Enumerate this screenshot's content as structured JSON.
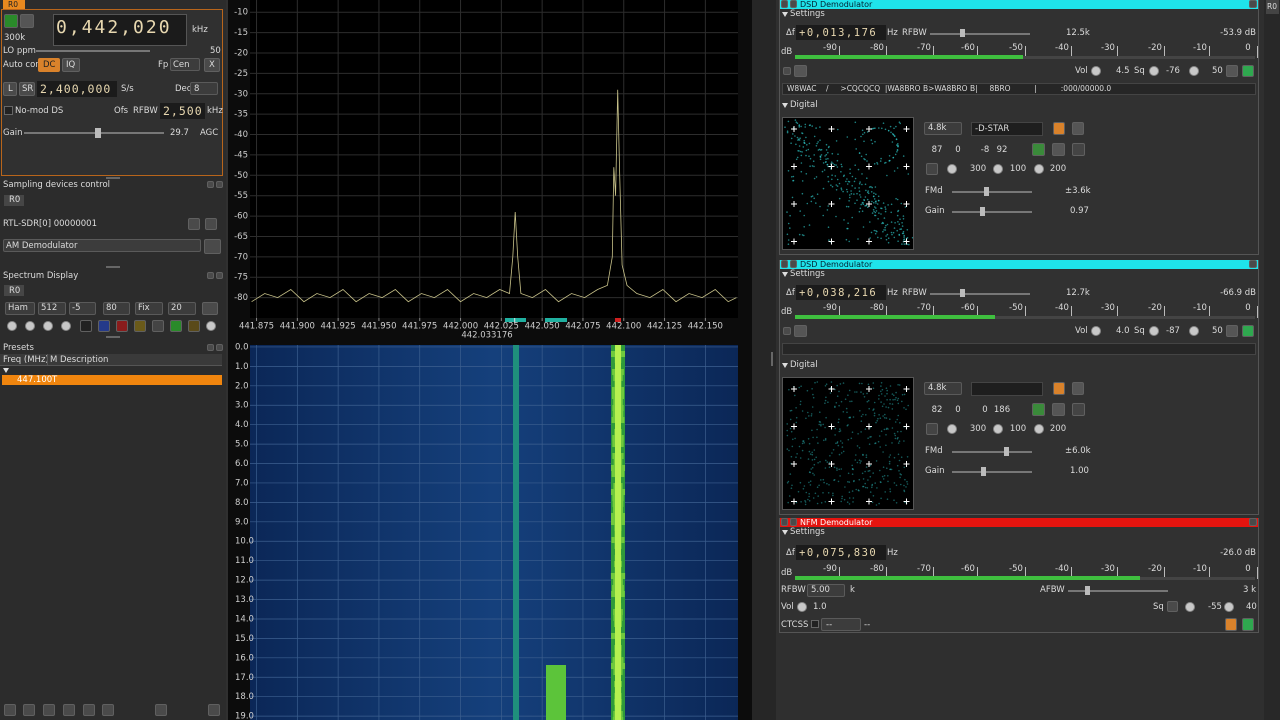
{
  "device": {
    "tab": "R0",
    "sample_rate": "300k",
    "frequency": "0,442,020",
    "frequency_unit": "kHz",
    "lo_ppm": "LO ppm",
    "lo_ppm_value": "50",
    "auto_corr": "Auto corr",
    "dc": "DC",
    "iq": "IQ",
    "fp": "Fp",
    "fp_value": "Cen",
    "close": "X",
    "l": "L",
    "sr": "SR",
    "sr_value": "2,400,000",
    "sr_unit": "S/s",
    "dec": "Dec",
    "dec_value": "8",
    "mode": "No-mod DS",
    "ofs": "Ofs",
    "rfbw": "RFBW",
    "rfbw_value": "2,500",
    "rfbw_unit": "kHz",
    "gain": "Gain",
    "gain_value": "29.7",
    "agc": "AGC"
  },
  "sampling": {
    "title": "Sampling devices control",
    "tab": "R0",
    "device": "RTL-SDR[0] 00000001",
    "plugin": "AM Demodulator"
  },
  "spectrum_display": {
    "title": "Spectrum Display",
    "tab": "R0",
    "window": "Ham",
    "fft": "512",
    "ref": "-5",
    "range": "80",
    "fix": "Fix",
    "avg": "20"
  },
  "presets": {
    "title": "Presets",
    "columns": [
      "Freq (MHz)",
      "M",
      "Description"
    ],
    "rows": [
      [
        "447.100",
        "T"
      ]
    ]
  },
  "spectrum": {
    "type": "line",
    "color": "#c9c38a",
    "grid": true,
    "x": [
      441.872,
      441.88,
      441.888,
      441.896,
      441.904,
      441.912,
      441.92,
      441.928,
      441.936,
      441.944,
      441.952,
      441.96,
      441.968,
      441.976,
      441.984,
      441.992,
      442.0,
      442.008,
      442.016,
      442.024,
      442.03,
      442.032,
      442.0335,
      442.035,
      442.037,
      442.044,
      442.052,
      442.06,
      442.068,
      442.076,
      442.084,
      442.09,
      442.093,
      442.0939,
      442.095,
      442.0963,
      442.0975,
      442.099,
      442.102,
      442.108,
      442.116,
      442.124,
      442.132,
      442.14,
      442.148,
      442.156,
      442.164,
      442.169
    ],
    "values": [
      -81,
      -79,
      -80,
      -78,
      -81,
      -79,
      -80,
      -78,
      -81,
      -79,
      -80,
      -78,
      -81,
      -79,
      -80,
      -78,
      -81,
      -79,
      -80,
      -78,
      -79,
      -70,
      -59,
      -70,
      -79,
      -80,
      -78,
      -81,
      -79,
      -80,
      -78,
      -77,
      -70,
      -48,
      -55,
      -29,
      -50,
      -72,
      -77,
      -79,
      -80,
      -78,
      -81,
      -79,
      -80,
      -78,
      -81,
      -80
    ],
    "xlim": [
      441.871,
      442.17
    ],
    "ylim": [
      -85,
      -7
    ],
    "xticks": [
      {
        "value": 441.875,
        "label": "441.875"
      },
      {
        "value": 441.9,
        "label": "441.900"
      },
      {
        "value": 441.925,
        "label": "441.925"
      },
      {
        "value": 441.95,
        "label": "441.950"
      },
      {
        "value": 441.975,
        "label": "441.975"
      },
      {
        "value": 442.0,
        "label": "442.000"
      },
      {
        "value": 442.025,
        "label": "442.025"
      },
      {
        "value": 442.05,
        "label": "442.050"
      },
      {
        "value": 442.075,
        "label": "442.075"
      },
      {
        "value": 442.1,
        "label": "442.100"
      },
      {
        "value": 442.125,
        "label": "442.125"
      },
      {
        "value": 442.15,
        "label": "442.150"
      }
    ],
    "yticks": [
      -10,
      -15,
      -20,
      -25,
      -30,
      -35,
      -40,
      -45,
      -50,
      -55,
      -60,
      -65,
      -70,
      -75,
      -80
    ],
    "marker": 442.033176
  },
  "waterfall": {
    "ylim": [
      -0.1,
      19.2
    ],
    "yticks": [
      {
        "value": 0,
        "label": "0.0"
      },
      {
        "value": 1,
        "label": "1.0"
      },
      {
        "value": 2,
        "label": "2.0"
      },
      {
        "value": 3,
        "label": "3.0"
      },
      {
        "value": 4,
        "label": "4.0"
      },
      {
        "value": 5,
        "label": "5.0"
      },
      {
        "value": 6,
        "label": "6.0"
      },
      {
        "value": 7,
        "label": "7.0"
      },
      {
        "value": 8,
        "label": "8.0"
      },
      {
        "value": 9,
        "label": "9.0"
      },
      {
        "value": 10,
        "label": "10.0"
      },
      {
        "value": 11,
        "label": "11.0"
      },
      {
        "value": 12,
        "label": "12.0"
      },
      {
        "value": 13,
        "label": "13.0"
      },
      {
        "value": 14,
        "label": "14.0"
      },
      {
        "value": 15,
        "label": "15.0"
      },
      {
        "value": 16,
        "label": "16.0"
      },
      {
        "value": 17,
        "label": "17.0"
      },
      {
        "value": 18,
        "label": "18.0"
      },
      {
        "value": 19,
        "label": "19.0"
      }
    ]
  },
  "meter_scale": [
    "-90",
    "-80",
    "-70",
    "-60",
    "-50",
    "-40",
    "-30",
    "-20",
    "-10",
    "0"
  ],
  "demodulators": [
    {
      "title": "DSD Demodulator",
      "settings": "Settings",
      "df": "Δf",
      "offset": "+0,013,176",
      "hz": "Hz",
      "rfbw": "RFBW",
      "rfbw_value": "12.5k",
      "level": "-53.9 dB",
      "db": "dB",
      "vol": "Vol",
      "vol_value": "4.5",
      "sq": "Sq",
      "sq_value": "-76",
      "sq_gate": "50",
      "status": "W8WAC    /     >CQCQCQ  |WA8BRO B>WA8BRO B|     8BRO          |          :000/00000.0",
      "digital": "Digital",
      "baud": "4.8k",
      "mode": "-D-STAR",
      "stats": [
        "87",
        "0",
        "-8",
        "92"
      ],
      "dials": [
        "300",
        "100",
        "200"
      ],
      "fmd": "FMd",
      "fmd_value": "±3.6k",
      "gain": "Gain",
      "gain_value": "0.97"
    },
    {
      "title": "DSD Demodulator",
      "settings": "Settings",
      "df": "Δf",
      "offset": "+0,038,216",
      "hz": "Hz",
      "rfbw": "RFBW",
      "rfbw_value": "12.7k",
      "level": "-66.9 dB",
      "db": "dB",
      "vol": "Vol",
      "vol_value": "4.0",
      "sq": "Sq",
      "sq_value": "-87",
      "sq_gate": "50",
      "digital": "Digital",
      "baud": "4.8k",
      "stats": [
        "82",
        "0",
        "0",
        "186"
      ],
      "dials": [
        "300",
        "100",
        "200"
      ],
      "fmd": "FMd",
      "fmd_value": "±6.0k",
      "gain": "Gain",
      "gain_value": "1.00"
    },
    {
      "title": "NFM Demodulator",
      "settings": "Settings",
      "df": "Δf",
      "offset": "+0,075,830",
      "hz": "Hz",
      "level": "-26.0 dB",
      "db": "dB",
      "rfbw": "RFBW",
      "rfbw_value": "5.00",
      "rfbw_unit": "k",
      "afbw": "AFBW",
      "afbw_value": "3 k",
      "vol": "Vol",
      "vol_value": "1.0",
      "sq": "Sq",
      "sq_value": "-55",
      "sq_gate": "40",
      "ctcss": "CTCSS",
      "ctcss_value": "--",
      "ctcss_tone": "--"
    }
  ],
  "side_tab": "R0"
}
